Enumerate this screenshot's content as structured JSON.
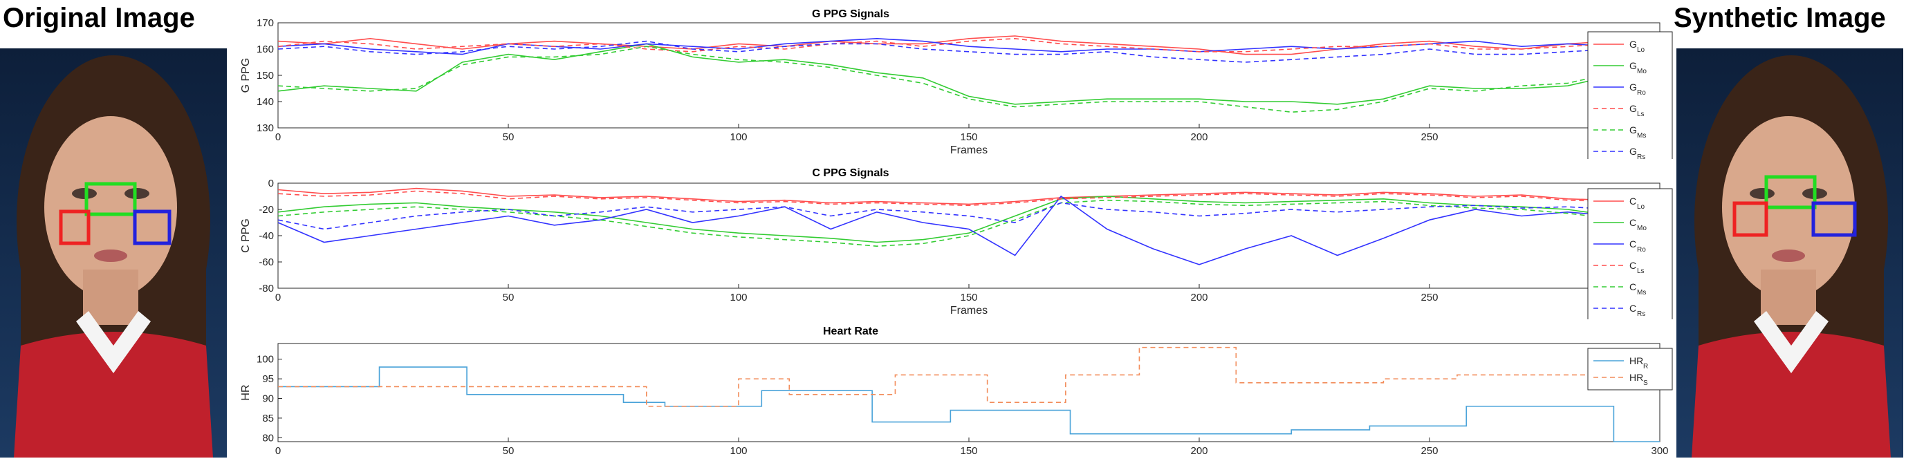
{
  "left_title": "Original Image",
  "right_title": "Synthetic Image",
  "chart_data": [
    {
      "type": "line",
      "title": "G PPG Signals",
      "xlabel": "Frames",
      "ylabel": "G PPG",
      "xlim": [
        0,
        300
      ],
      "ylim": [
        130,
        170
      ],
      "xticks": [
        0,
        50,
        100,
        150,
        200,
        250,
        300
      ],
      "yticks": [
        130,
        140,
        150,
        160,
        170
      ],
      "legend_position": "right",
      "series": [
        {
          "name": "G_Lo",
          "label": "G",
          "sub": "Lo",
          "color": "#ff4d4d",
          "dash": false,
          "x": [
            0,
            10,
            20,
            30,
            40,
            50,
            60,
            70,
            80,
            90,
            100,
            110,
            120,
            130,
            140,
            150,
            160,
            170,
            180,
            190,
            200,
            210,
            220,
            230,
            240,
            250,
            260,
            270,
            280,
            290,
            300
          ],
          "y": [
            163,
            162,
            164,
            162,
            160,
            162,
            163,
            162,
            161,
            160,
            162,
            161,
            163,
            162,
            162,
            164,
            165,
            163,
            162,
            161,
            160,
            158,
            158,
            160,
            162,
            163,
            161,
            160,
            162,
            163,
            164
          ]
        },
        {
          "name": "G_Mo",
          "label": "G",
          "sub": "Mo",
          "color": "#33cc33",
          "dash": false,
          "x": [
            0,
            10,
            20,
            30,
            40,
            50,
            60,
            70,
            80,
            90,
            100,
            110,
            120,
            130,
            140,
            150,
            160,
            170,
            180,
            190,
            200,
            210,
            220,
            230,
            240,
            250,
            260,
            270,
            280,
            290,
            300
          ],
          "y": [
            144,
            146,
            145,
            144,
            155,
            158,
            156,
            159,
            162,
            157,
            155,
            156,
            154,
            151,
            149,
            142,
            139,
            140,
            141,
            141,
            141,
            140,
            140,
            139,
            141,
            146,
            145,
            145,
            146,
            150,
            155
          ]
        },
        {
          "name": "G_Ro",
          "label": "G",
          "sub": "Ro",
          "color": "#3333ff",
          "dash": false,
          "x": [
            0,
            10,
            20,
            30,
            40,
            50,
            60,
            70,
            80,
            90,
            100,
            110,
            120,
            130,
            140,
            150,
            160,
            170,
            180,
            190,
            200,
            210,
            220,
            230,
            240,
            250,
            260,
            270,
            280,
            290,
            300
          ],
          "y": [
            161,
            162,
            160,
            159,
            158,
            162,
            161,
            160,
            162,
            161,
            160,
            162,
            163,
            164,
            163,
            161,
            160,
            159,
            160,
            160,
            159,
            160,
            161,
            160,
            161,
            162,
            163,
            161,
            162,
            161,
            160
          ]
        },
        {
          "name": "G_Ls",
          "label": "G",
          "sub": "Ls",
          "color": "#ff4d4d",
          "dash": true,
          "x": [
            0,
            10,
            20,
            30,
            40,
            50,
            60,
            70,
            80,
            90,
            100,
            110,
            120,
            130,
            140,
            150,
            160,
            170,
            180,
            190,
            200,
            210,
            220,
            230,
            240,
            250,
            260,
            270,
            280,
            290,
            300
          ],
          "y": [
            161,
            163,
            162,
            160,
            161,
            162,
            161,
            162,
            160,
            159,
            161,
            160,
            162,
            163,
            161,
            163,
            164,
            162,
            161,
            160,
            159,
            159,
            160,
            161,
            161,
            162,
            160,
            160,
            161,
            162,
            162
          ]
        },
        {
          "name": "G_Ms",
          "label": "G",
          "sub": "Ms",
          "color": "#33cc33",
          "dash": true,
          "x": [
            0,
            10,
            20,
            30,
            40,
            50,
            60,
            70,
            80,
            90,
            100,
            110,
            120,
            130,
            140,
            150,
            160,
            170,
            180,
            190,
            200,
            210,
            220,
            230,
            240,
            250,
            260,
            270,
            280,
            290,
            300
          ],
          "y": [
            146,
            145,
            144,
            145,
            154,
            157,
            157,
            158,
            161,
            158,
            156,
            155,
            153,
            150,
            147,
            141,
            138,
            139,
            140,
            140,
            140,
            138,
            136,
            137,
            140,
            145,
            144,
            146,
            147,
            151,
            154
          ]
        },
        {
          "name": "G_Rs",
          "label": "G",
          "sub": "Rs",
          "color": "#3333ff",
          "dash": true,
          "x": [
            0,
            10,
            20,
            30,
            40,
            50,
            60,
            70,
            80,
            90,
            100,
            110,
            120,
            130,
            140,
            150,
            160,
            170,
            180,
            190,
            200,
            210,
            220,
            230,
            240,
            250,
            260,
            270,
            280,
            290,
            300
          ],
          "y": [
            160,
            161,
            159,
            158,
            159,
            161,
            160,
            161,
            163,
            160,
            159,
            161,
            162,
            162,
            160,
            159,
            158,
            158,
            159,
            157,
            156,
            155,
            156,
            157,
            158,
            160,
            158,
            158,
            159,
            160,
            158
          ]
        }
      ]
    },
    {
      "type": "line",
      "title": "C PPG Signals",
      "xlabel": "Frames",
      "ylabel": "C PPG",
      "xlim": [
        0,
        300
      ],
      "ylim": [
        -80,
        0
      ],
      "xticks": [
        0,
        50,
        100,
        150,
        200,
        250,
        300
      ],
      "yticks": [
        -80,
        -60,
        -40,
        -20,
        0
      ],
      "legend_position": "right",
      "series": [
        {
          "name": "C_Lo",
          "label": "C",
          "sub": "Lo",
          "color": "#ff4d4d",
          "dash": false,
          "x": [
            0,
            10,
            20,
            30,
            40,
            50,
            60,
            70,
            80,
            90,
            100,
            110,
            120,
            130,
            140,
            150,
            160,
            170,
            180,
            190,
            200,
            210,
            220,
            230,
            240,
            250,
            260,
            270,
            280,
            290,
            300
          ],
          "y": [
            -5,
            -8,
            -7,
            -4,
            -6,
            -10,
            -9,
            -11,
            -10,
            -12,
            -14,
            -13,
            -15,
            -14,
            -15,
            -16,
            -14,
            -11,
            -10,
            -9,
            -8,
            -7,
            -8,
            -9,
            -7,
            -8,
            -10,
            -9,
            -12,
            -13,
            -15
          ]
        },
        {
          "name": "C_Mo",
          "label": "C",
          "sub": "Mo",
          "color": "#33cc33",
          "dash": false,
          "x": [
            0,
            10,
            20,
            30,
            40,
            50,
            60,
            70,
            80,
            90,
            100,
            110,
            120,
            130,
            140,
            150,
            160,
            170,
            180,
            190,
            200,
            210,
            220,
            230,
            240,
            250,
            260,
            270,
            280,
            290,
            300
          ],
          "y": [
            -22,
            -18,
            -16,
            -15,
            -18,
            -20,
            -22,
            -25,
            -30,
            -35,
            -38,
            -40,
            -42,
            -45,
            -43,
            -38,
            -25,
            -12,
            -10,
            -12,
            -14,
            -15,
            -14,
            -13,
            -12,
            -15,
            -17,
            -18,
            -20,
            -25,
            -28
          ]
        },
        {
          "name": "C_Ro",
          "label": "C",
          "sub": "Ro",
          "color": "#3333ff",
          "dash": false,
          "x": [
            0,
            10,
            20,
            30,
            40,
            50,
            60,
            70,
            80,
            90,
            100,
            110,
            120,
            130,
            140,
            150,
            160,
            170,
            180,
            190,
            200,
            210,
            220,
            230,
            240,
            250,
            260,
            270,
            280,
            290,
            300
          ],
          "y": [
            -30,
            -45,
            -40,
            -35,
            -30,
            -25,
            -32,
            -28,
            -20,
            -30,
            -25,
            -18,
            -35,
            -22,
            -30,
            -35,
            -55,
            -10,
            -35,
            -50,
            -62,
            -50,
            -40,
            -55,
            -42,
            -28,
            -20,
            -25,
            -22,
            -25,
            -20
          ]
        },
        {
          "name": "C_Ls",
          "label": "C",
          "sub": "Ls",
          "color": "#ff4d4d",
          "dash": true,
          "x": [
            0,
            10,
            20,
            30,
            40,
            50,
            60,
            70,
            80,
            90,
            100,
            110,
            120,
            130,
            140,
            150,
            160,
            170,
            180,
            190,
            200,
            210,
            220,
            230,
            240,
            250,
            260,
            270,
            280,
            290,
            300
          ],
          "y": [
            -8,
            -10,
            -9,
            -6,
            -8,
            -12,
            -10,
            -12,
            -11,
            -13,
            -15,
            -14,
            -16,
            -15,
            -16,
            -17,
            -15,
            -12,
            -11,
            -10,
            -9,
            -8,
            -9,
            -10,
            -8,
            -9,
            -11,
            -10,
            -13,
            -14,
            -16
          ]
        },
        {
          "name": "C_Ms",
          "label": "C",
          "sub": "Ms",
          "color": "#33cc33",
          "dash": true,
          "x": [
            0,
            10,
            20,
            30,
            40,
            50,
            60,
            70,
            80,
            90,
            100,
            110,
            120,
            130,
            140,
            150,
            160,
            170,
            180,
            190,
            200,
            210,
            220,
            230,
            240,
            250,
            260,
            270,
            280,
            290,
            300
          ],
          "y": [
            -25,
            -22,
            -20,
            -18,
            -20,
            -22,
            -25,
            -28,
            -33,
            -38,
            -41,
            -43,
            -45,
            -48,
            -46,
            -40,
            -28,
            -15,
            -13,
            -14,
            -16,
            -17,
            -16,
            -15,
            -14,
            -17,
            -19,
            -20,
            -23,
            -27,
            -30
          ]
        },
        {
          "name": "C_Rs",
          "label": "C",
          "sub": "Rs",
          "color": "#3333ff",
          "dash": true,
          "x": [
            0,
            10,
            20,
            30,
            40,
            50,
            60,
            70,
            80,
            90,
            100,
            110,
            120,
            130,
            140,
            150,
            160,
            170,
            180,
            190,
            200,
            210,
            220,
            230,
            240,
            250,
            260,
            270,
            280,
            290,
            300
          ],
          "y": [
            -28,
            -35,
            -30,
            -25,
            -22,
            -20,
            -25,
            -22,
            -18,
            -22,
            -20,
            -18,
            -25,
            -20,
            -22,
            -25,
            -30,
            -15,
            -20,
            -22,
            -25,
            -23,
            -20,
            -22,
            -20,
            -18,
            -17,
            -19,
            -18,
            -20,
            -19
          ]
        }
      ]
    },
    {
      "type": "line",
      "title": "Heart Rate",
      "xlabel": "",
      "ylabel": "HR",
      "xlim": [
        0,
        300
      ],
      "ylim": [
        79,
        104
      ],
      "xticks": [
        0,
        50,
        100,
        150,
        200,
        250,
        300
      ],
      "yticks": [
        80,
        85,
        90,
        95,
        100
      ],
      "legend_position": "top-right",
      "series": [
        {
          "name": "HR_R",
          "label": "HR",
          "sub": "R",
          "color": "#4aa3d9",
          "dash": false,
          "x": [
            0,
            22,
            22,
            41,
            41,
            75,
            75,
            84,
            84,
            105,
            105,
            129,
            129,
            146,
            146,
            172,
            172,
            220,
            220,
            237,
            237,
            258,
            258,
            290,
            290,
            300
          ],
          "y": [
            93,
            93,
            98,
            98,
            91,
            91,
            89,
            89,
            88,
            88,
            92,
            92,
            84,
            84,
            87,
            87,
            81,
            81,
            82,
            82,
            83,
            83,
            88,
            88,
            79,
            79
          ]
        },
        {
          "name": "HR_S",
          "label": "HR",
          "sub": "S",
          "color": "#f28c5a",
          "dash": true,
          "x": [
            0,
            80,
            80,
            84,
            84,
            100,
            100,
            111,
            111,
            134,
            134,
            154,
            154,
            171,
            171,
            187,
            187,
            208,
            208,
            240,
            240,
            256,
            256,
            300
          ],
          "y": [
            93,
            93,
            88,
            88,
            88,
            88,
            95,
            95,
            91,
            91,
            96,
            96,
            89,
            89,
            96,
            96,
            103,
            103,
            94,
            94,
            95,
            95,
            96,
            96
          ]
        }
      ]
    }
  ]
}
